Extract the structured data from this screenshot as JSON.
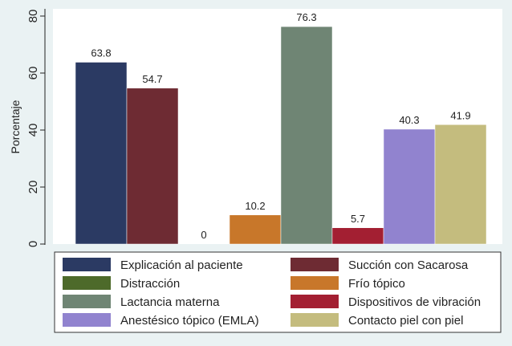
{
  "chart_data": {
    "type": "bar",
    "title": "",
    "xlabel": "",
    "ylabel": "Porcentaje",
    "ylim": [
      0,
      80
    ],
    "yticks": [
      0,
      20,
      40,
      60,
      80
    ],
    "grid": false,
    "legend_position": "bottom",
    "series": [
      {
        "name": "Explicación al paciente",
        "value": 63.8,
        "label": "63.8",
        "color": "#2b3a63"
      },
      {
        "name": "Succión con Sacarosa",
        "value": 54.7,
        "label": "54.7",
        "color": "#6e2b33"
      },
      {
        "name": "Distracción",
        "value": 0,
        "label": "0",
        "color": "#4d6a2a"
      },
      {
        "name": "Frío tópico",
        "value": 10.2,
        "label": "10.2",
        "color": "#c8772a"
      },
      {
        "name": "Lactancia materna",
        "value": 76.3,
        "label": "76.3",
        "color": "#6f8574"
      },
      {
        "name": "Dispositivos de vibración",
        "value": 5.7,
        "label": "5.7",
        "color": "#a31f32"
      },
      {
        "name": "Anestésico tópico (EMLA)",
        "value": 40.3,
        "label": "40.3",
        "color": "#9183cf"
      },
      {
        "name": "Contacto piel con piel",
        "value": 41.9,
        "label": "41.9",
        "color": "#c4bc7e"
      }
    ]
  }
}
